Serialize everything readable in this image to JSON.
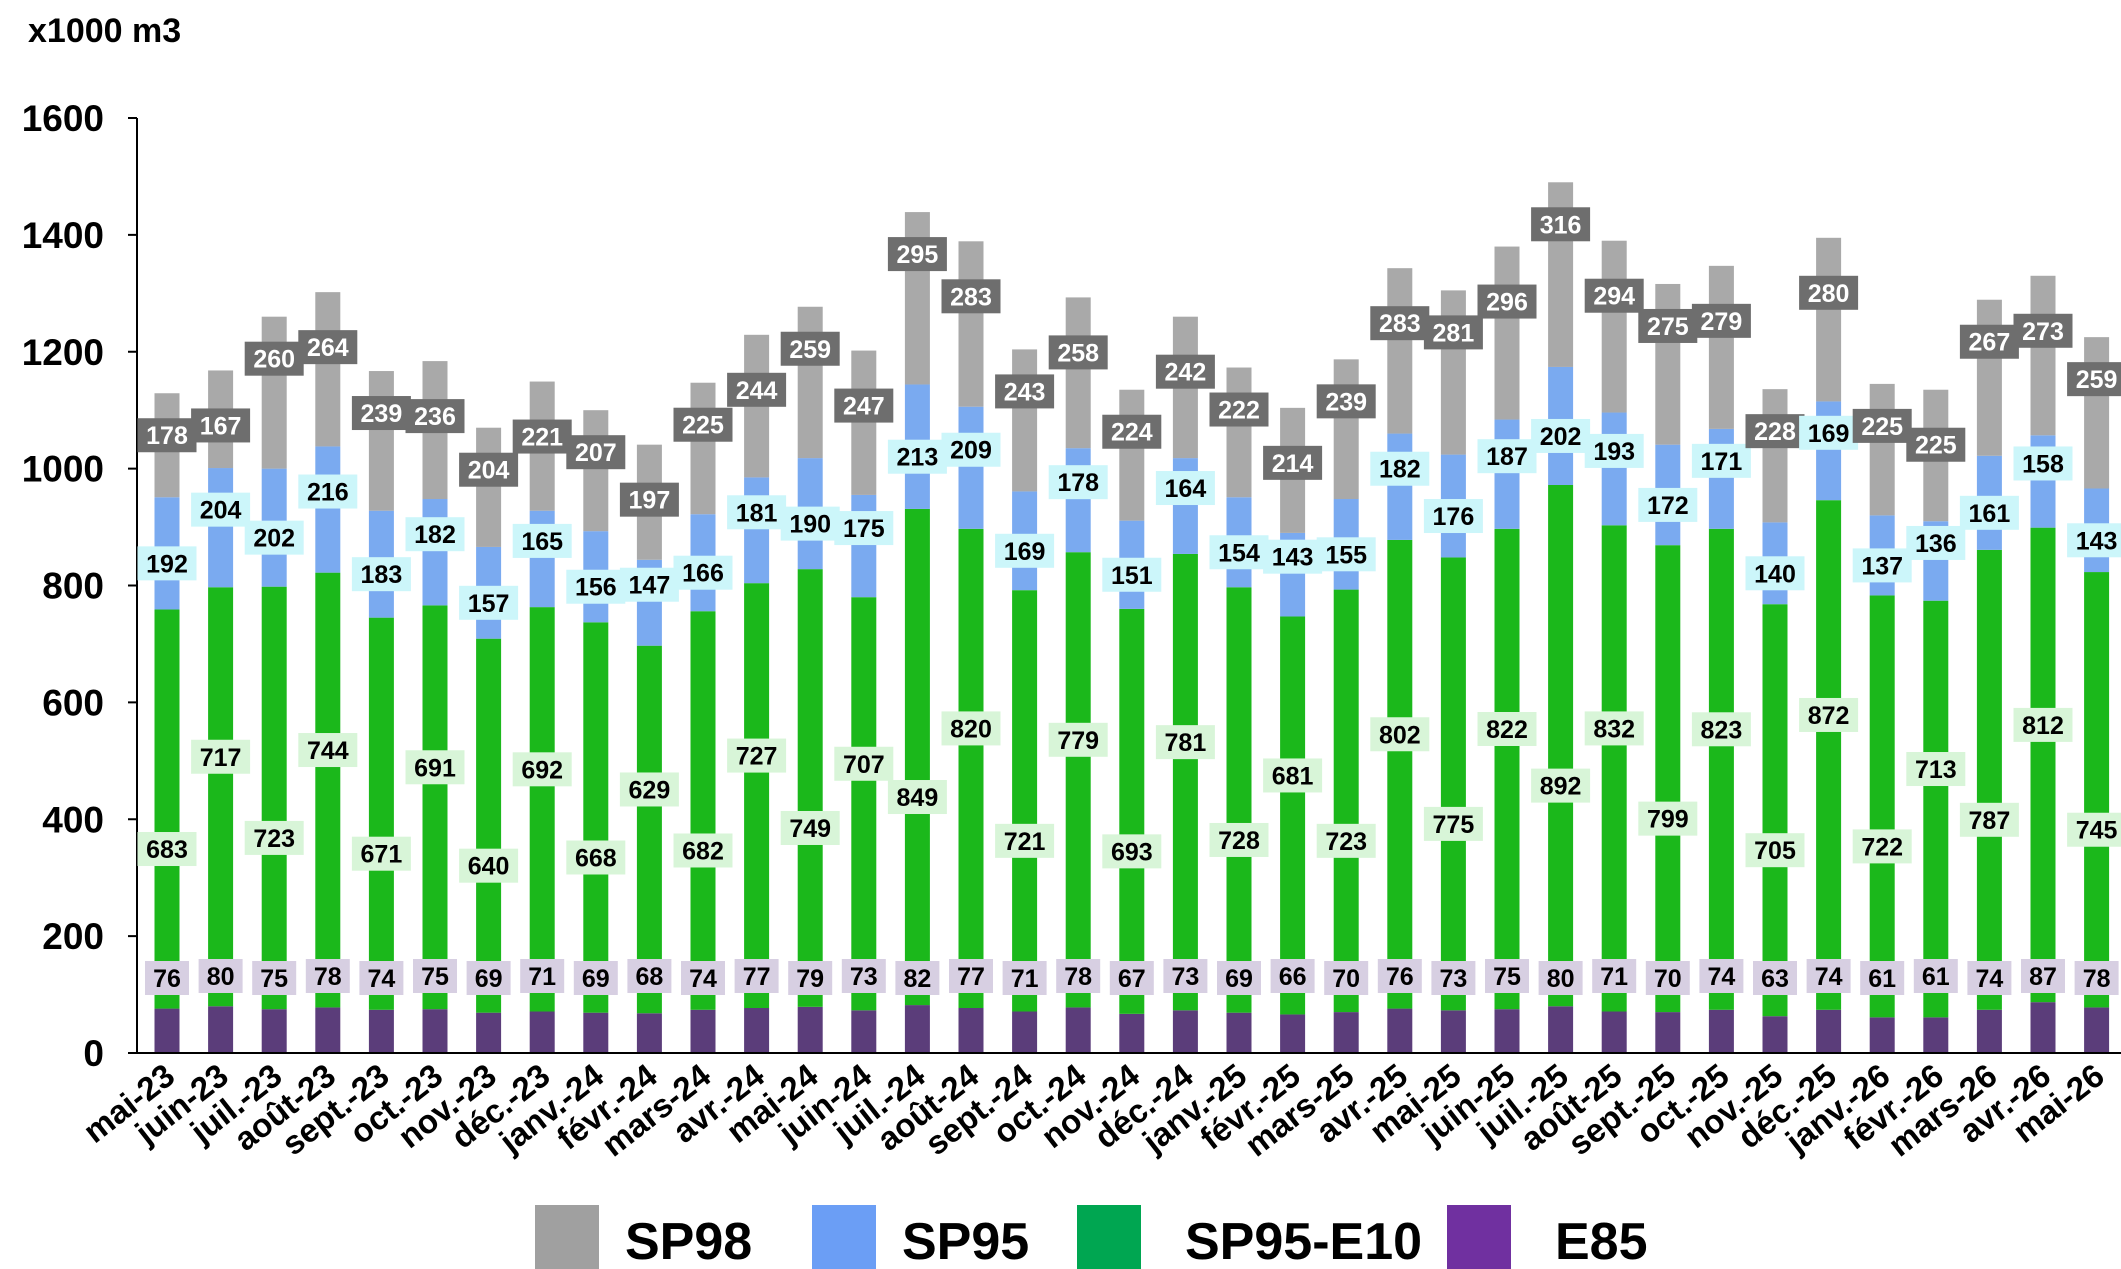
{
  "chart_data": {
    "type": "bar",
    "stacked": true,
    "ylabel": "x1000 m3",
    "ylim": [
      0,
      1600
    ],
    "yticks": [
      0,
      200,
      400,
      600,
      800,
      1000,
      1200,
      1400,
      1600
    ],
    "grid": false,
    "legend_position": "bottom",
    "categories": [
      "mai-23",
      "juin-23",
      "juil.-23",
      "août-23",
      "sept.-23",
      "oct.-23",
      "nov.-23",
      "déc.-23",
      "janv.-24",
      "févr.-24",
      "mars-24",
      "avr.-24",
      "mai-24",
      "juin-24",
      "juil.-24",
      "août-24",
      "sept.-24",
      "oct.-24",
      "nov.-24",
      "déc.-24",
      "janv.-25",
      "févr.-25",
      "mars-25",
      "avr.-25",
      "mai-25",
      "juin-25",
      "juil.-25",
      "août-25",
      "sept.-25",
      "oct.-25",
      "nov.-25",
      "déc.-25",
      "janv.-26",
      "févr.-26",
      "mars-26",
      "avr.-26",
      "mai-26"
    ],
    "series": [
      {
        "name": "E85",
        "color": "#5b3d7a",
        "label_bg": "#d7cfe2",
        "label_color": "#000000",
        "values": [
          76,
          80,
          75,
          78,
          74,
          75,
          69,
          71,
          69,
          68,
          74,
          77,
          79,
          73,
          82,
          77,
          71,
          78,
          67,
          73,
          69,
          66,
          70,
          76,
          73,
          75,
          80,
          71,
          70,
          74,
          63,
          74,
          61,
          61,
          74,
          87,
          78
        ]
      },
      {
        "name": "SP95-E10",
        "color": "#1bb81b",
        "label_bg": "#d8f5d8",
        "label_color": "#000000",
        "values": [
          683,
          717,
          723,
          744,
          671,
          691,
          640,
          692,
          668,
          629,
          682,
          727,
          749,
          707,
          849,
          820,
          721,
          779,
          693,
          781,
          728,
          681,
          723,
          802,
          775,
          822,
          892,
          832,
          799,
          823,
          705,
          872,
          722,
          713,
          787,
          812,
          745
        ]
      },
      {
        "name": "SP95",
        "color": "#7aaaf0",
        "label_bg": "#ccf6fa",
        "label_color": "#000000",
        "values": [
          192,
          204,
          202,
          216,
          183,
          182,
          157,
          165,
          156,
          147,
          166,
          181,
          190,
          175,
          213,
          209,
          169,
          178,
          151,
          164,
          154,
          143,
          155,
          182,
          176,
          187,
          202,
          193,
          172,
          171,
          140,
          169,
          137,
          136,
          161,
          158,
          143
        ]
      },
      {
        "name": "SP98",
        "color": "#a9a9a9",
        "label_bg": "#6e6e6e",
        "label_color": "#ffffff",
        "values": [
          178,
          167,
          260,
          264,
          239,
          236,
          204,
          221,
          207,
          197,
          225,
          244,
          259,
          247,
          295,
          283,
          243,
          258,
          224,
          242,
          222,
          214,
          239,
          283,
          281,
          296,
          316,
          294,
          275,
          279,
          228,
          280,
          225,
          225,
          267,
          273,
          259
        ]
      }
    ],
    "legend": [
      {
        "name": "SP98",
        "color": "#a0a0a0"
      },
      {
        "name": "SP95",
        "color": "#6b9ef5"
      },
      {
        "name": "SP95-E10",
        "color": "#00a651"
      },
      {
        "name": "E85",
        "color": "#7030a0"
      }
    ]
  }
}
